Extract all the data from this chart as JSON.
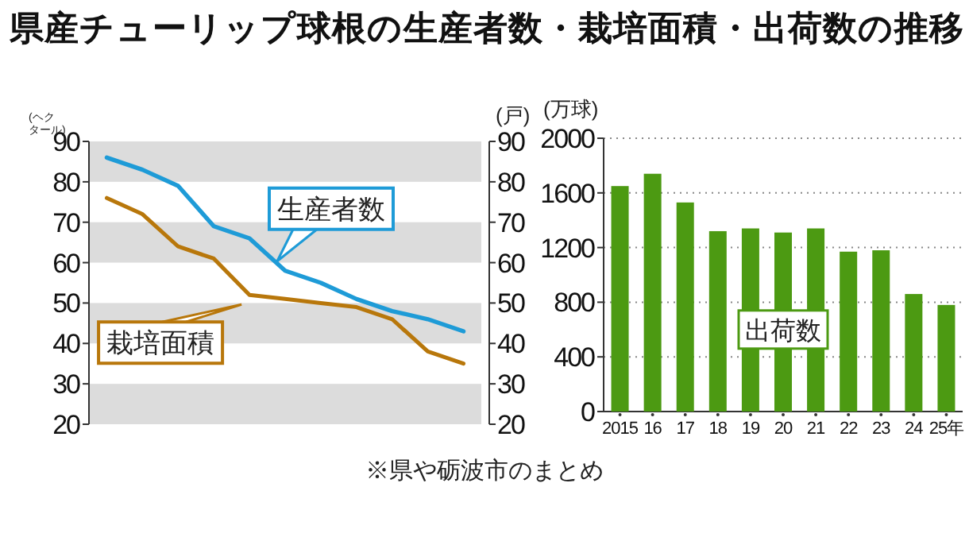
{
  "chart_data": [
    {
      "type": "line",
      "title": "県産チューリップ球根の生産者数・栽培面積・出荷数の推移",
      "ylabel": "(ヘクタール)",
      "y2label": "(戸)",
      "categories": [
        null,
        null,
        null,
        null,
        null,
        null,
        null,
        null,
        null,
        null,
        null
      ],
      "series": [
        {
          "name": "生産者数",
          "color": "#1e9bd7",
          "axis": "y2",
          "values": [
            86,
            83,
            79,
            69,
            66,
            58,
            55,
            51,
            48,
            46,
            43
          ]
        },
        {
          "name": "栽培面積",
          "color": "#b8770b",
          "axis": "y",
          "values": [
            76,
            72,
            64,
            61,
            52,
            51,
            50,
            49,
            46,
            38,
            35
          ]
        }
      ],
      "ylim": [
        20,
        90
      ],
      "yticks": [
        20,
        30,
        40,
        50,
        60,
        70,
        80,
        90
      ],
      "y2lim": [
        20,
        90
      ],
      "y2ticks": [
        20,
        30,
        40,
        50,
        60,
        70,
        80,
        90
      ],
      "grid": "y",
      "marker": "none",
      "line_style": "solid",
      "legend": "center"
    },
    {
      "type": "bar",
      "ylabel": "(万球)",
      "categories": [
        "2015",
        "16",
        "17",
        "18",
        "19",
        "20",
        "21",
        "22",
        "23",
        "24",
        "25年"
      ],
      "series": [
        {
          "name": "出荷数",
          "color": "#4c9a12",
          "values": [
            1650,
            1740,
            1530,
            1320,
            1340,
            1310,
            1340,
            1170,
            1180,
            860,
            780
          ]
        }
      ],
      "ylim": [
        0,
        2000
      ],
      "yticks": [
        0,
        400,
        800,
        1200,
        1600,
        2000
      ],
      "grid": "y",
      "legend": "bottom",
      "annotations": [
        "※県や砺波市のまとめ"
      ]
    }
  ]
}
